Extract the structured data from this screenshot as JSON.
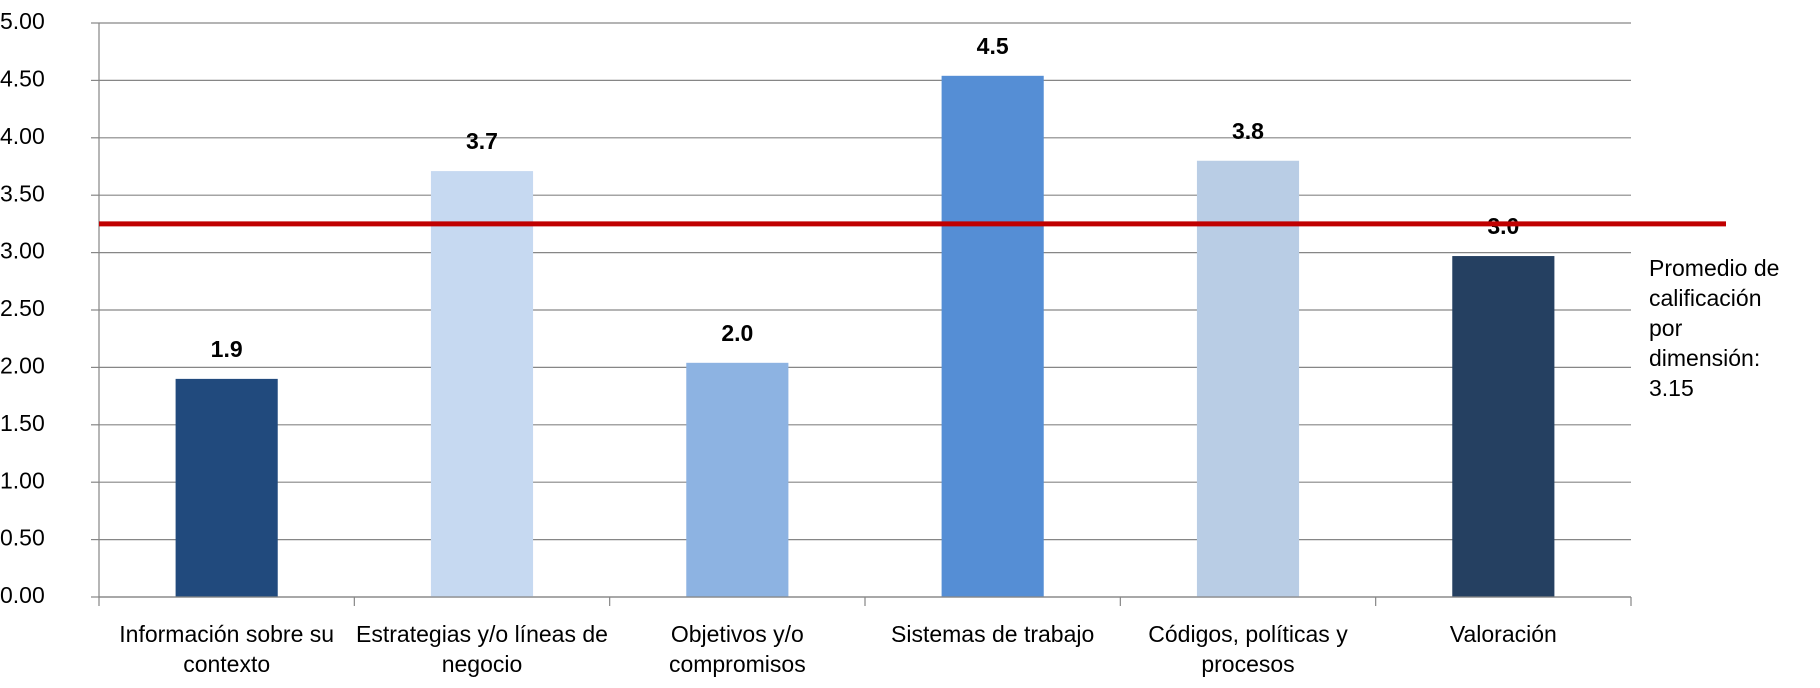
{
  "chart_data": {
    "type": "bar",
    "categories": [
      "Información sobre su contexto",
      "Estrategias y/o líneas de negocio",
      "Objetivos y/o compromisos",
      "Sistemas de trabajo",
      "Códigos, políticas y procesos",
      "Valoración"
    ],
    "values": [
      1.9,
      3.71,
      2.04,
      4.54,
      3.8,
      2.97
    ],
    "value_labels": [
      "1.9",
      "3.7",
      "2.0",
      "4.5",
      "3.8",
      "3.0"
    ],
    "colors": [
      "#214a7d",
      "#c6d9f1",
      "#8db3e2",
      "#558ed5",
      "#b9cde5",
      "#254061"
    ],
    "ylim": [
      0,
      5
    ],
    "yticks": [
      {
        "value": 0,
        "label": "0.00"
      },
      {
        "value": 0.5,
        "label": "0.50"
      },
      {
        "value": 1,
        "label": "1.00"
      },
      {
        "value": 1.5,
        "label": "1.50"
      },
      {
        "value": 2,
        "label": "2.00"
      },
      {
        "value": 2.5,
        "label": "2.50"
      },
      {
        "value": 3,
        "label": "3.00"
      },
      {
        "value": 3.5,
        "label": "3.50"
      },
      {
        "value": 4,
        "label": "4.00"
      },
      {
        "value": 4.5,
        "label": "4.50"
      },
      {
        "value": 5,
        "label": "5.00"
      }
    ],
    "grid": true,
    "reference_line": {
      "value": 3.25,
      "color": "#c00000"
    },
    "annotation": "Promedio de calificación por dimensión: 3.15"
  }
}
